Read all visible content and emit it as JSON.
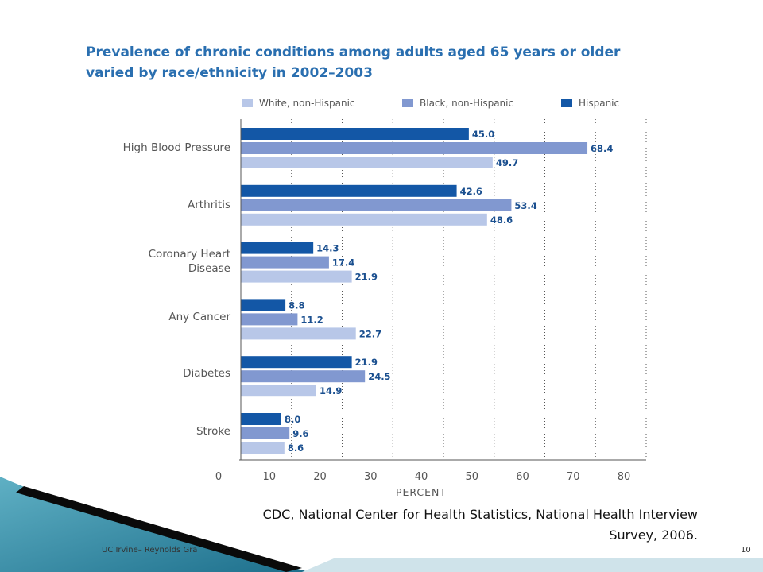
{
  "slide": {
    "source_line1": "CDC, National Center for Health Statistics, National Health Interview",
    "source_line2": "Survey, 2006.",
    "footer": "UC Irvine– Reynolds Gra",
    "page_number": "10"
  },
  "chart_data": {
    "type": "bar",
    "orientation": "horizontal",
    "title_line1": "Prevalence of chronic conditions among adults aged 65 years or older",
    "title_line2": "varied by race/ethnicity in 2002–2003",
    "xlabel": "PERCENT",
    "xlim": [
      0,
      80
    ],
    "xticks": [
      0,
      10,
      20,
      30,
      40,
      50,
      60,
      70,
      80
    ],
    "grid": "vertical dotted",
    "legend_position": "top",
    "legend_entries": [
      "White, non-Hispanic",
      "Black, non-Hispanic",
      "Hispanic"
    ],
    "categories": [
      {
        "line1": "High Blood Pressure",
        "line2": ""
      },
      {
        "line1": "Arthritis",
        "line2": ""
      },
      {
        "line1": "Coronary Heart",
        "line2": "Disease"
      },
      {
        "line1": "Any Cancer",
        "line2": ""
      },
      {
        "line1": "Diabetes",
        "line2": ""
      },
      {
        "line1": "Stroke",
        "line2": ""
      }
    ],
    "bar_order_per_category": [
      "Hispanic",
      "Black, non-Hispanic",
      "White, non-Hispanic"
    ],
    "series": [
      {
        "name": "Hispanic",
        "color": "#1357a6",
        "values": [
          45.0,
          42.6,
          14.3,
          8.8,
          21.9,
          8.0
        ],
        "labels": [
          "45.0",
          "42.6",
          "14.3",
          "8.8",
          "21.9",
          "8.0"
        ]
      },
      {
        "name": "Black, non-Hispanic",
        "color": "#8198d0",
        "values": [
          68.4,
          53.4,
          17.4,
          11.2,
          24.5,
          9.6
        ],
        "labels": [
          "68.4",
          "53.4",
          "17.4",
          "11.2",
          "24.5",
          "9.6"
        ]
      },
      {
        "name": "White, non-Hispanic",
        "color": "#b8c7e8",
        "values": [
          49.7,
          48.6,
          21.9,
          22.7,
          14.9,
          8.6
        ],
        "labels": [
          "49.7",
          "48.6",
          "21.9",
          "22.7",
          "14.9",
          "8.6"
        ]
      }
    ]
  }
}
